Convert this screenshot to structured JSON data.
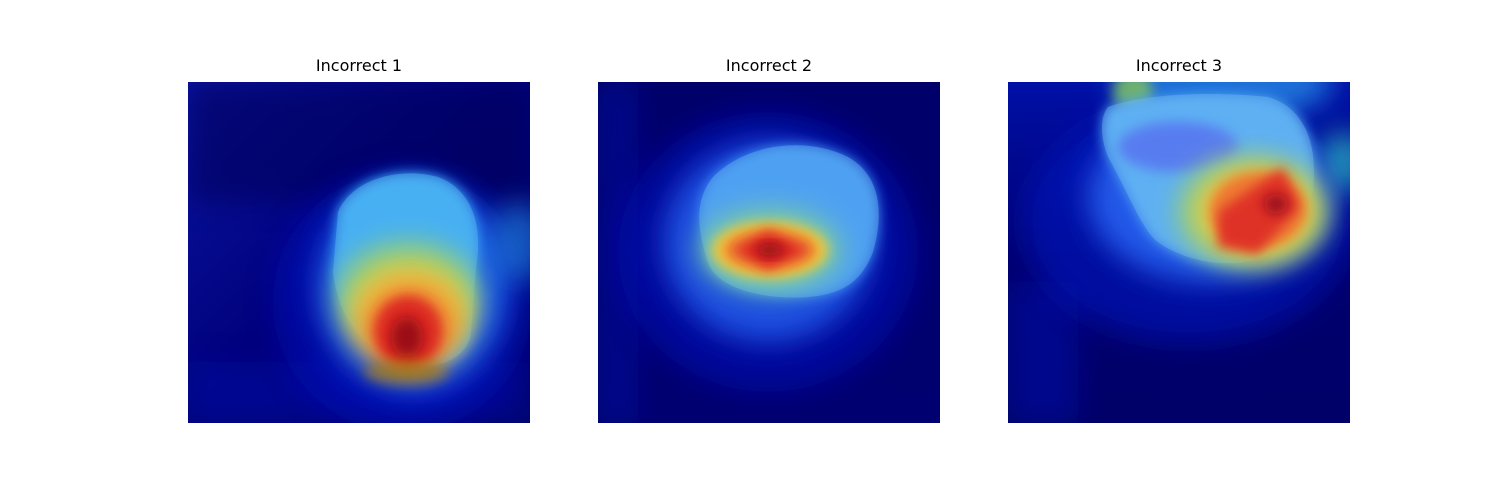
{
  "figure": {
    "panels": [
      {
        "title": "Incorrect 1"
      },
      {
        "title": "Incorrect 2"
      },
      {
        "title": "Incorrect 3"
      }
    ],
    "colormap": "jet",
    "colors": {
      "background_deep": "#00005a",
      "low": "#0000a8",
      "mid_cyan": "#3ec3f0",
      "mid_yellow": "#f2d33a",
      "high": "#e0281f",
      "peak": "#8a0a14"
    }
  }
}
